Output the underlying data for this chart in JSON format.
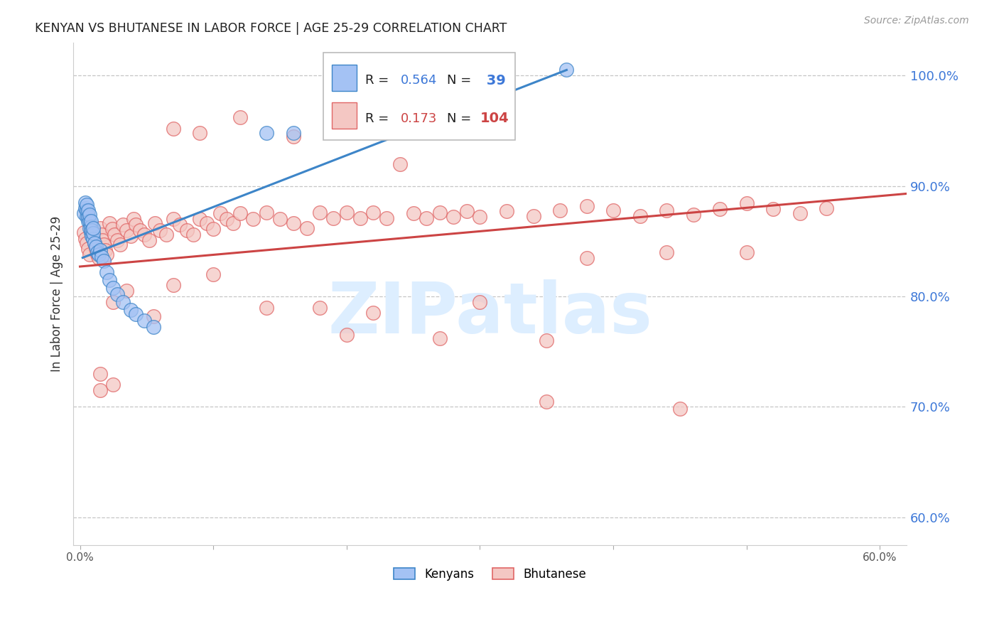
{
  "title": "KENYAN VS BHUTANESE IN LABOR FORCE | AGE 25-29 CORRELATION CHART",
  "source": "Source: ZipAtlas.com",
  "ylabel": "In Labor Force | Age 25-29",
  "xlim": [
    -0.005,
    0.62
  ],
  "ylim": [
    0.575,
    1.03
  ],
  "xticks": [
    0.0,
    0.1,
    0.2,
    0.3,
    0.4,
    0.5,
    0.6
  ],
  "xtick_labels": [
    "0.0%",
    "",
    "",
    "",
    "",
    "",
    "60.0%"
  ],
  "ytick_labels_right": [
    "60.0%",
    "70.0%",
    "80.0%",
    "90.0%",
    "100.0%"
  ],
  "yticks_right": [
    0.6,
    0.7,
    0.8,
    0.9,
    1.0
  ],
  "legend_r_kenya": "0.564",
  "legend_n_kenya": "39",
  "legend_r_bhutan": "0.173",
  "legend_n_bhutan": "104",
  "kenya_color": "#a4c2f4",
  "bhutan_color": "#f4c7c3",
  "kenya_edge_color": "#3d85c8",
  "bhutan_edge_color": "#e06666",
  "kenya_line_color": "#3d85c8",
  "bhutan_line_color": "#cc4444",
  "watermark": "ZIPatlas",
  "watermark_color": "#ddeeff",
  "background_color": "#ffffff",
  "grid_color": "#c0c0c0",
  "kenya_line_x": [
    0.002,
    0.365
  ],
  "kenya_line_y": [
    0.835,
    1.005
  ],
  "bhutan_line_x": [
    0.0,
    0.62
  ],
  "bhutan_line_y": [
    0.827,
    0.893
  ],
  "kenya_x": [
    0.003,
    0.004,
    0.004,
    0.005,
    0.005,
    0.005,
    0.006,
    0.006,
    0.006,
    0.007,
    0.007,
    0.007,
    0.008,
    0.008,
    0.008,
    0.009,
    0.009,
    0.01,
    0.01,
    0.01,
    0.011,
    0.012,
    0.013,
    0.014,
    0.015,
    0.016,
    0.018,
    0.02,
    0.022,
    0.025,
    0.028,
    0.032,
    0.038,
    0.042,
    0.048,
    0.055,
    0.14,
    0.16,
    0.365
  ],
  "kenya_y": [
    0.875,
    0.88,
    0.885,
    0.872,
    0.878,
    0.883,
    0.868,
    0.873,
    0.878,
    0.862,
    0.868,
    0.874,
    0.858,
    0.863,
    0.868,
    0.855,
    0.86,
    0.852,
    0.857,
    0.862,
    0.848,
    0.845,
    0.84,
    0.838,
    0.842,
    0.836,
    0.832,
    0.822,
    0.815,
    0.808,
    0.802,
    0.795,
    0.788,
    0.784,
    0.778,
    0.772,
    0.948,
    0.948,
    1.005
  ],
  "bhutan_x": [
    0.003,
    0.004,
    0.005,
    0.006,
    0.007,
    0.008,
    0.009,
    0.01,
    0.011,
    0.012,
    0.013,
    0.014,
    0.015,
    0.016,
    0.017,
    0.018,
    0.019,
    0.02,
    0.022,
    0.024,
    0.026,
    0.028,
    0.03,
    0.032,
    0.035,
    0.038,
    0.04,
    0.042,
    0.045,
    0.048,
    0.052,
    0.056,
    0.06,
    0.065,
    0.07,
    0.075,
    0.08,
    0.085,
    0.09,
    0.095,
    0.1,
    0.105,
    0.11,
    0.115,
    0.12,
    0.13,
    0.14,
    0.15,
    0.16,
    0.17,
    0.18,
    0.19,
    0.2,
    0.21,
    0.22,
    0.23,
    0.24,
    0.25,
    0.26,
    0.27,
    0.28,
    0.29,
    0.3,
    0.32,
    0.34,
    0.36,
    0.38,
    0.4,
    0.42,
    0.44,
    0.46,
    0.48,
    0.5,
    0.52,
    0.54,
    0.56,
    0.015,
    0.025,
    0.035,
    0.055,
    0.07,
    0.1,
    0.14,
    0.2,
    0.27,
    0.35,
    0.015,
    0.025,
    0.18,
    0.22,
    0.3,
    0.38,
    0.44,
    0.5,
    0.35,
    0.45,
    0.07,
    0.09,
    0.12,
    0.16
  ],
  "bhutan_y": [
    0.858,
    0.852,
    0.848,
    0.843,
    0.838,
    0.862,
    0.857,
    0.853,
    0.848,
    0.843,
    0.838,
    0.835,
    0.862,
    0.856,
    0.851,
    0.847,
    0.842,
    0.838,
    0.866,
    0.861,
    0.856,
    0.851,
    0.847,
    0.865,
    0.86,
    0.855,
    0.87,
    0.865,
    0.86,
    0.856,
    0.851,
    0.866,
    0.86,
    0.856,
    0.87,
    0.865,
    0.86,
    0.856,
    0.87,
    0.866,
    0.861,
    0.875,
    0.87,
    0.866,
    0.875,
    0.87,
    0.876,
    0.87,
    0.866,
    0.862,
    0.876,
    0.871,
    0.876,
    0.871,
    0.876,
    0.871,
    0.92,
    0.875,
    0.871,
    0.876,
    0.872,
    0.877,
    0.872,
    0.877,
    0.873,
    0.878,
    0.882,
    0.878,
    0.873,
    0.878,
    0.874,
    0.879,
    0.884,
    0.879,
    0.875,
    0.88,
    0.73,
    0.795,
    0.805,
    0.782,
    0.81,
    0.82,
    0.79,
    0.765,
    0.762,
    0.76,
    0.715,
    0.72,
    0.79,
    0.785,
    0.795,
    0.835,
    0.84,
    0.84,
    0.705,
    0.698,
    0.952,
    0.948,
    0.962,
    0.945
  ]
}
